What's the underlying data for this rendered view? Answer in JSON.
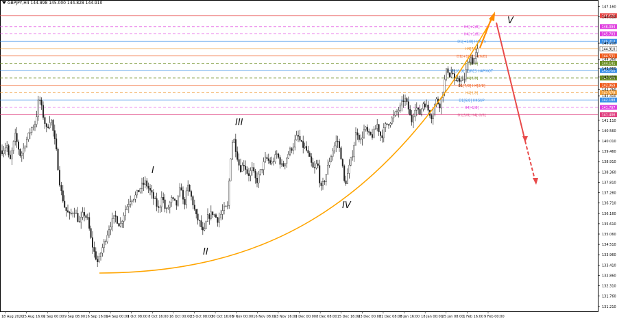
{
  "header": {
    "symbol": "GBPJPY,H4",
    "ohlc": "144.898 145.000 144.828 144.910"
  },
  "chart_data": {
    "type": "candlestick",
    "title": "GBPJPY,H4",
    "ylim": [
      131.2,
      147.4
    ],
    "price_ticks": [
      "147.160",
      "146.610",
      "145.210",
      "144.360",
      "143.860",
      "143.410",
      "142.760",
      "142.410",
      "141.110",
      "140.560",
      "140.010",
      "139.460",
      "138.910",
      "138.360",
      "137.810",
      "137.260",
      "136.710",
      "136.160",
      "135.610",
      "135.060",
      "134.510",
      "133.960",
      "133.410",
      "132.860",
      "132.310",
      "131.760",
      "131.210"
    ],
    "time_labels": [
      "18 Aug 2020",
      "25 Aug 16:00",
      "2 Sep 00:00",
      "9 Sep 08:00",
      "16 Sep 16:00",
      "24 Sep 00:00",
      "1 Oct 08:00",
      "8 Oct 16:00",
      "16 Oct 00:00",
      "23 Oct 08:00",
      "30 Oct 16:00",
      "9 Nov 00:00",
      "16 Nov 08:00",
      "23 Nov 16:00",
      "1 Dec 00:00",
      "8 Dec 08:00",
      "15 Dec 16:00",
      "23 Dec 00:00",
      "31 Dec 08:00",
      "8 Jan 16:00",
      "18 Jan 00:00",
      "25 Jan 08:00",
      "1 Feb 16:00",
      "9 Feb 00:00"
    ],
    "levels": [
      {
        "label": "",
        "price": 146.675,
        "tag": "146.675",
        "color": "#e84a4a",
        "style": "solid"
      },
      {
        "label": "H4[+2/8]",
        "price": 146.094,
        "tag": "146.094",
        "color": "#e040e0",
        "style": "dashed"
      },
      {
        "label": "H4[+1/8]",
        "price": 145.703,
        "tag": "145.703",
        "color": "#e040e0",
        "style": "dashed"
      },
      {
        "label": "D1[+2/8] H4RES",
        "price": 145.313,
        "tag": "145.313",
        "color": "#3a8fe8",
        "style": "solid"
      },
      {
        "label": "H4[7/8]",
        "price": 144.922,
        "tag": "144.922",
        "color": "#f08a1c",
        "style": "solid"
      },
      {
        "label": "D1[+1/8] H4[6/8]",
        "price": 144.531,
        "tag": "144.531",
        "color": "#f05a1c",
        "style": "solid"
      },
      {
        "label": "H4[5/8]",
        "price": 144.141,
        "tag": "144.141",
        "color": "#6b8e23",
        "style": "dashed"
      },
      {
        "label": "W1[8/8] D1RES H4PIVOT",
        "price": 143.75,
        "tag": "143.750",
        "color": "#3a8fe8",
        "style": "solid"
      },
      {
        "label": "H4[3/8]",
        "price": 143.359,
        "tag": "143.359",
        "color": "#6b8e23",
        "style": "dashed"
      },
      {
        "label": "D1[7/8] H4[2/8]",
        "price": 142.969,
        "tag": "142.969",
        "color": "#f05a1c",
        "style": "solid"
      },
      {
        "label": "H4[1/8]",
        "price": 142.578,
        "tag": "142.578",
        "color": "#f0a040",
        "style": "dashed"
      },
      {
        "label": "D1[6/8] H4SUP",
        "price": 142.188,
        "tag": "142.188",
        "color": "#3a8fe8",
        "style": "solid"
      },
      {
        "label": "H4[-1/8]",
        "price": 141.797,
        "tag": "141.797",
        "color": "#e040e0",
        "style": "dashed"
      },
      {
        "label": "D1[5/8] H4[-2/8]",
        "price": 141.406,
        "tag": "141.406",
        "color": "#e04080",
        "style": "solid"
      }
    ],
    "wave_labels": [
      "I",
      "II",
      "III",
      "IV",
      "V"
    ],
    "current_price": "144.910"
  },
  "colors": {
    "candle": "#222222",
    "arc": "#ffa500",
    "up_arrow": "#ff8c00",
    "down_arrow": "#e84a4a"
  }
}
